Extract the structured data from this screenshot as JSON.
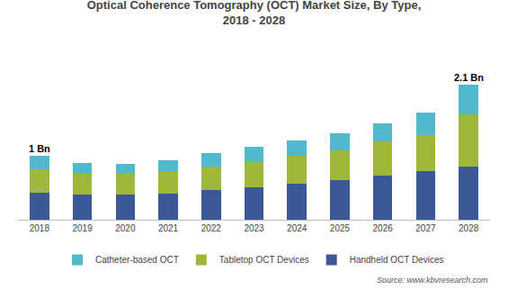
{
  "chart_data": {
    "type": "bar",
    "stacked": true,
    "title": "Optical Coherence Tomography (OCT) Market Size, By Type,",
    "subtitle": "2018 - 2028",
    "categories": [
      "2018",
      "2019",
      "2020",
      "2021",
      "2022",
      "2023",
      "2024",
      "2025",
      "2026",
      "2027",
      "2028"
    ],
    "series": [
      {
        "name": "Handheld OCT Devices",
        "color": "#3a5898",
        "values": [
          0.42,
          0.39,
          0.39,
          0.41,
          0.46,
          0.51,
          0.56,
          0.62,
          0.68,
          0.75,
          0.82
        ]
      },
      {
        "name": "Tabletop OCT Devices",
        "color": "#9fb83a",
        "values": [
          0.37,
          0.33,
          0.33,
          0.34,
          0.37,
          0.39,
          0.43,
          0.46,
          0.54,
          0.57,
          0.82
        ]
      },
      {
        "name": "Catheter-based OCT",
        "color": "#52b8cc",
        "values": [
          0.21,
          0.16,
          0.15,
          0.18,
          0.21,
          0.24,
          0.25,
          0.26,
          0.28,
          0.35,
          0.46
        ]
      }
    ],
    "ylim": [
      0,
      2.55
    ],
    "tick_labels": "x",
    "grid": false,
    "legend": "bottom",
    "annotations": [
      {
        "category": "2018",
        "text": "1 Bn"
      },
      {
        "category": "2028",
        "text": "2.1 Bn"
      }
    ],
    "source": "Source: www.kbvresearch.com"
  }
}
